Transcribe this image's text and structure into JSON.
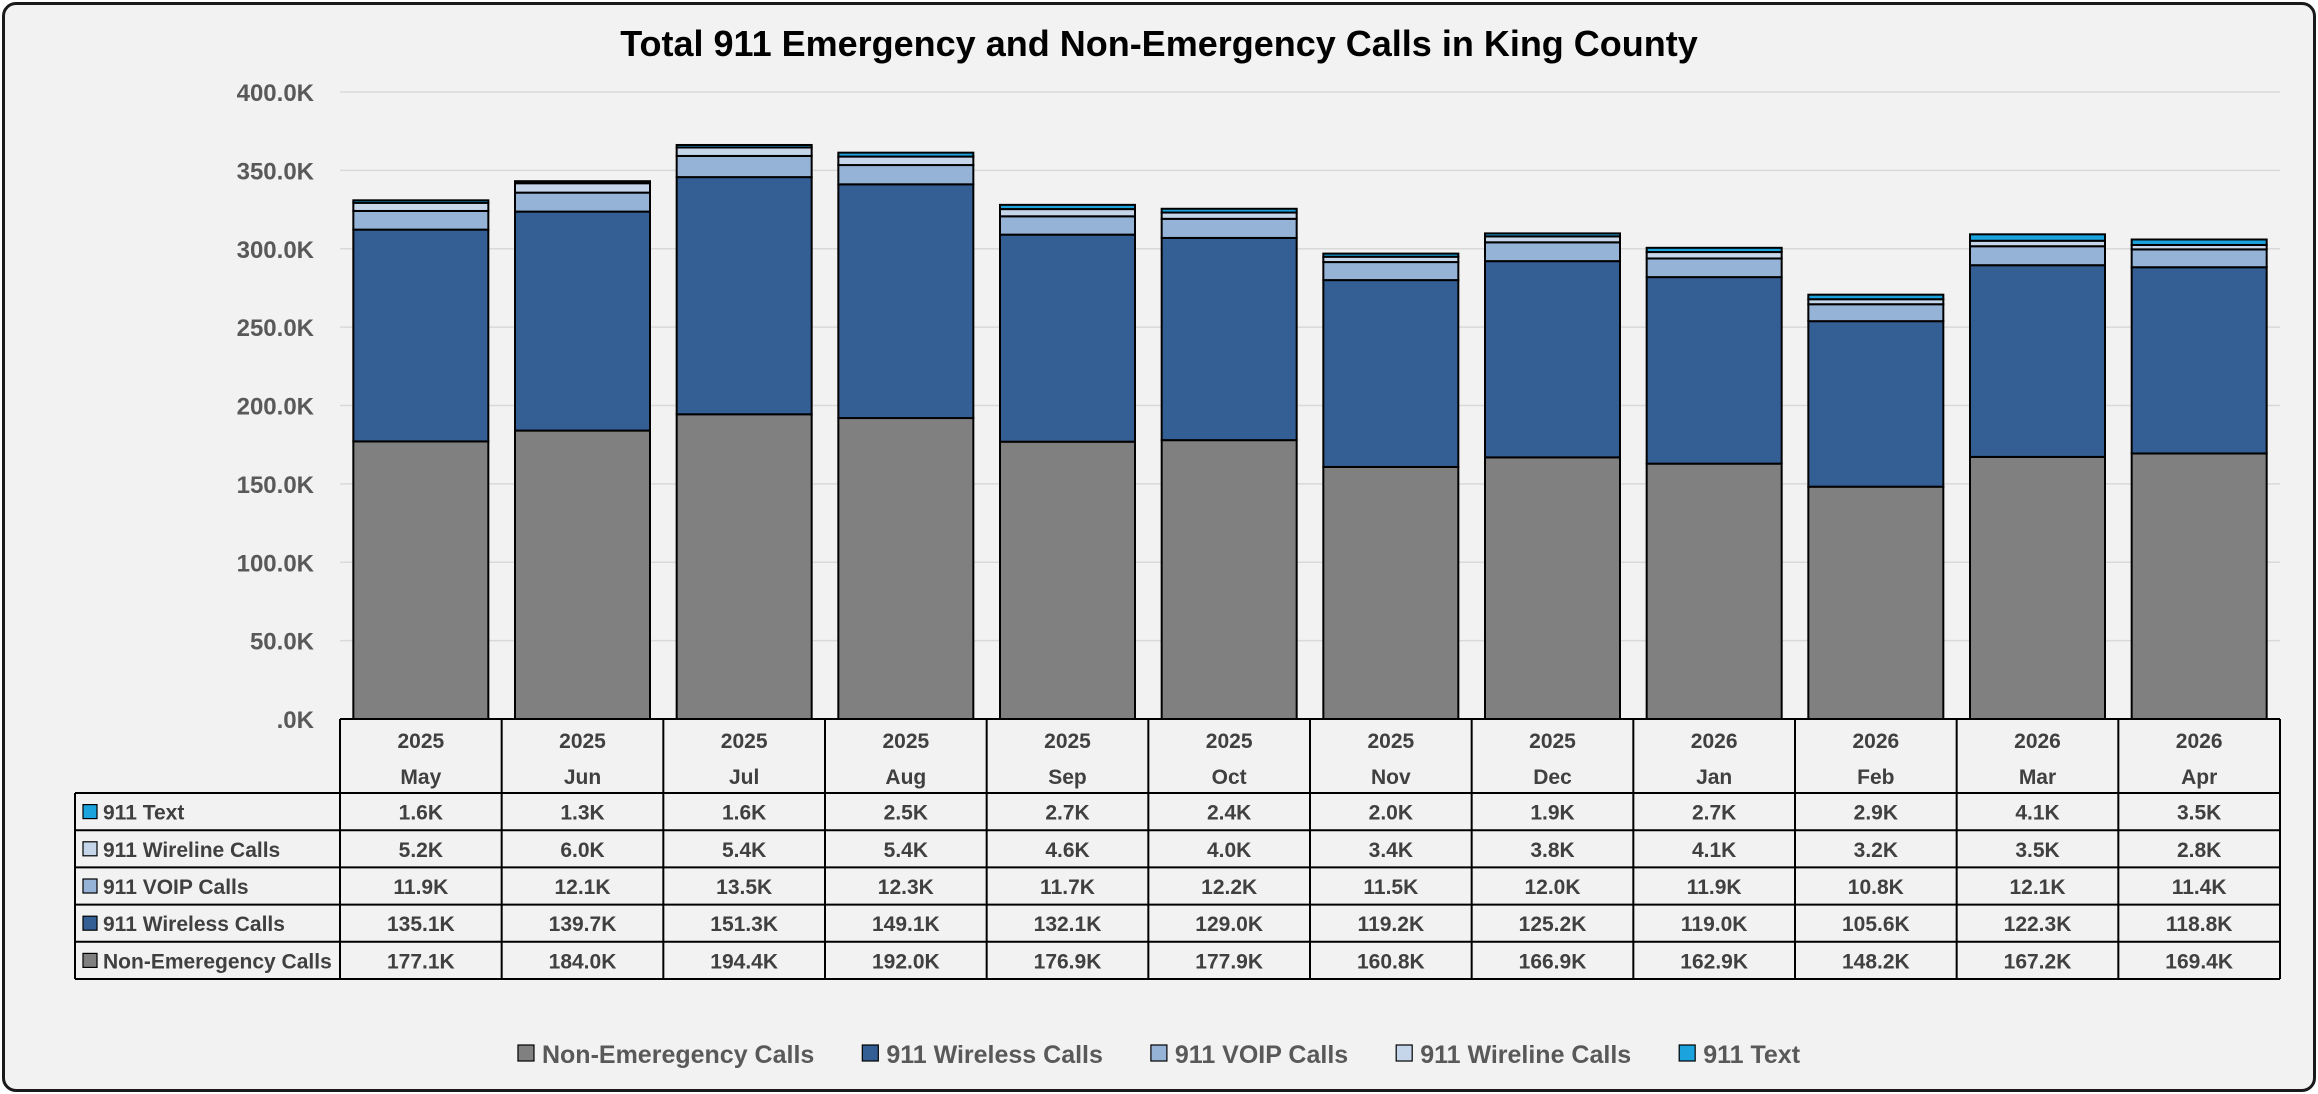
{
  "chart_data": {
    "type": "bar",
    "stacked": true,
    "title": "Total 911 Emergency and Non-Emergency Calls in King County",
    "categories": [
      {
        "year": "2025",
        "month": "May"
      },
      {
        "year": "2025",
        "month": "Jun"
      },
      {
        "year": "2025",
        "month": "Jul"
      },
      {
        "year": "2025",
        "month": "Aug"
      },
      {
        "year": "2025",
        "month": "Sep"
      },
      {
        "year": "2025",
        "month": "Oct"
      },
      {
        "year": "2025",
        "month": "Nov"
      },
      {
        "year": "2025",
        "month": "Dec"
      },
      {
        "year": "2026",
        "month": "Jan"
      },
      {
        "year": "2026",
        "month": "Feb"
      },
      {
        "year": "2026",
        "month": "Mar"
      },
      {
        "year": "2026",
        "month": "Apr"
      }
    ],
    "series": [
      {
        "name": "Non-Emeregency Calls",
        "color": "#808080",
        "values": [
          177.1,
          184.0,
          194.4,
          192.0,
          176.9,
          177.9,
          160.8,
          166.9,
          162.9,
          148.2,
          167.2,
          169.4
        ],
        "labels": [
          "177.1K",
          "184.0K",
          "194.4K",
          "192.0K",
          "176.9K",
          "177.9K",
          "160.8K",
          "166.9K",
          "162.9K",
          "148.2K",
          "167.2K",
          "169.4K"
        ]
      },
      {
        "name": "911 Wireless Calls",
        "color": "#335f94",
        "values": [
          135.1,
          139.7,
          151.3,
          149.1,
          132.1,
          129.0,
          119.2,
          125.2,
          119.0,
          105.6,
          122.3,
          118.8
        ],
        "labels": [
          "135.1K",
          "139.7K",
          "151.3K",
          "149.1K",
          "132.1K",
          "129.0K",
          "119.2K",
          "125.2K",
          "119.0K",
          "105.6K",
          "122.3K",
          "118.8K"
        ]
      },
      {
        "name": "911 VOIP Calls",
        "color": "#95b3d7",
        "values": [
          11.9,
          12.1,
          13.5,
          12.3,
          11.7,
          12.2,
          11.5,
          12.0,
          11.9,
          10.8,
          12.1,
          11.4
        ],
        "labels": [
          "11.9K",
          "12.1K",
          "13.5K",
          "12.3K",
          "11.7K",
          "12.2K",
          "11.5K",
          "12.0K",
          "11.9K",
          "10.8K",
          "12.1K",
          "11.4K"
        ]
      },
      {
        "name": "911 Wireline Calls",
        "color": "#c5d6ea",
        "values": [
          5.2,
          6.0,
          5.4,
          5.4,
          4.6,
          4.0,
          3.4,
          3.8,
          4.1,
          3.2,
          3.5,
          2.8
        ],
        "labels": [
          "5.2K",
          "6.0K",
          "5.4K",
          "5.4K",
          "4.6K",
          "4.0K",
          "3.4K",
          "3.8K",
          "4.1K",
          "3.2K",
          "3.5K",
          "2.8K"
        ]
      },
      {
        "name": "911 Text",
        "color": "#1aa3dc",
        "values": [
          1.6,
          1.3,
          1.6,
          2.5,
          2.7,
          2.4,
          2.0,
          1.9,
          2.7,
          2.9,
          4.1,
          3.5
        ],
        "labels": [
          "1.6K",
          "1.3K",
          "1.6K",
          "2.5K",
          "2.7K",
          "2.4K",
          "2.0K",
          "1.9K",
          "2.7K",
          "2.9K",
          "4.1K",
          "3.5K"
        ]
      }
    ],
    "table_row_order": [
      "911 Text",
      "911 Wireline Calls",
      "911 VOIP Calls",
      "911 Wireless Calls",
      "Non-Emeregency Calls"
    ],
    "legend_order": [
      "Non-Emeregency Calls",
      "911 Wireless Calls",
      "911 VOIP Calls",
      "911 Wireline Calls",
      "911 Text"
    ],
    "y_unit": "thousands of calls",
    "ylim": [
      0,
      400
    ],
    "yticks": [
      0,
      50,
      100,
      150,
      200,
      250,
      300,
      350,
      400
    ],
    "ytick_labels": [
      ".0K",
      "50.0K",
      "100.0K",
      "150.0K",
      "200.0K",
      "250.0K",
      "300.0K",
      "350.0K",
      "400.0K"
    ],
    "grid": true,
    "legend_position": "bottom",
    "data_table": true
  }
}
